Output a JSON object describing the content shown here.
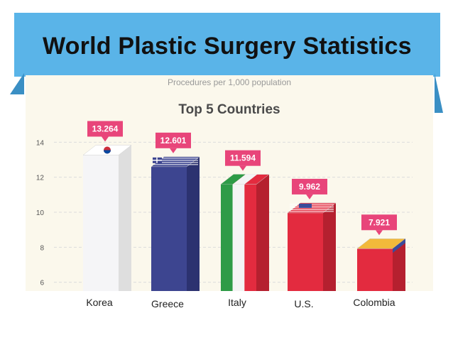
{
  "slide": {
    "title": "World Plastic Surgery Statistics"
  },
  "chart_data": {
    "type": "bar",
    "title": "Top 5 Countries",
    "subtitle": "Procedures per 1,000 population",
    "xlabel": "",
    "ylabel": "",
    "categories": [
      "Korea",
      "Greece",
      "Italy",
      "U.S.",
      "Colombia"
    ],
    "values": [
      13.264,
      12.601,
      11.594,
      9.962,
      7.921
    ],
    "value_labels": [
      "13.264",
      "12.601",
      "11.594",
      "9.962",
      "7.921"
    ],
    "yticks": [
      6,
      8,
      10,
      12,
      14
    ],
    "ylim": [
      5.5,
      14.5
    ],
    "grid": true,
    "colors": {
      "label_bg": "#e8457a",
      "grid": "#dcdcdc",
      "tick_text": "#555555",
      "title_text": "#4a4a4a",
      "bar_faces": [
        "#f5f5f7",
        "#3d4590",
        "#e32b3f",
        "#e32b3f",
        "#e32b3f"
      ],
      "bar_sides": [
        "#dedede",
        "#2c3270",
        "#b5202f",
        "#b5202f",
        "#b5202f"
      ],
      "italy_green": "#2e9b47",
      "colombia_yellow": "#f2b93b",
      "colombia_blue": "#3b4b9a"
    }
  }
}
